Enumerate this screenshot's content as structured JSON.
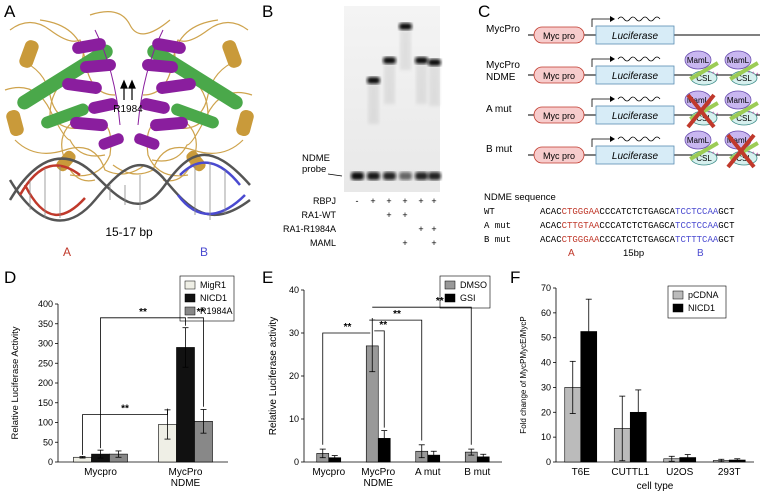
{
  "panels": {
    "A": {
      "letter": "A",
      "residue_label": "R1984",
      "spacing_label": "15-17 bp",
      "site_a_label": "A",
      "site_b_label": "B",
      "colors": {
        "helix_green": "#4aa84a",
        "purple": "#8a1e9e",
        "gold": "#c99a3a",
        "dna_red": "#c0392b",
        "dna_blue": "#4a4ad0",
        "dna_grey": "#555555"
      }
    },
    "B": {
      "letter": "B",
      "probe_label": "NDME\nprobe",
      "row_labels": [
        "RBPJ",
        "RA1-WT",
        "RA1-R1984A",
        "MAML"
      ],
      "lanes": [
        {
          "RBPJ": "-",
          "RA1-WT": "",
          "RA1-R1984A": "",
          "MAML": ""
        },
        {
          "RBPJ": "+",
          "RA1-WT": "",
          "RA1-R1984A": "",
          "MAML": ""
        },
        {
          "RBPJ": "+",
          "RA1-WT": "+",
          "RA1-R1984A": "",
          "MAML": ""
        },
        {
          "RBPJ": "+",
          "RA1-WT": "+",
          "RA1-R1984A": "",
          "MAML": "+"
        },
        {
          "RBPJ": "+",
          "RA1-WT": "",
          "RA1-R1984A": "+",
          "MAML": ""
        },
        {
          "RBPJ": "+",
          "RA1-WT": "",
          "RA1-R1984A": "+",
          "MAML": "+"
        }
      ]
    },
    "C": {
      "letter": "C",
      "constructs": [
        {
          "name": "MycPro",
          "has_sites": false,
          "mut_a": false,
          "mut_b": false
        },
        {
          "name": "MycPro\nNDME",
          "has_sites": true,
          "mut_a": false,
          "mut_b": false
        },
        {
          "name": "A mut",
          "has_sites": true,
          "mut_a": true,
          "mut_b": false
        },
        {
          "name": "B mut",
          "has_sites": true,
          "mut_a": false,
          "mut_b": true
        }
      ],
      "promoter_label": "Myc pro",
      "reporter_label": "Luciferase",
      "maml_label": "MamL",
      "csl_label": "CSL",
      "sequence_title": "NDME sequence",
      "sequences": [
        {
          "name": "WT",
          "segments": [
            [
              "ACAC",
              "k"
            ],
            [
              "CTGGGAA",
              "r"
            ],
            [
              "CCCATCTCTGAGCA",
              "k"
            ],
            [
              "TCCTCCAA",
              "b"
            ],
            [
              "GCT",
              "k"
            ]
          ]
        },
        {
          "name": "A mut",
          "segments": [
            [
              "ACAC",
              "k"
            ],
            [
              "CTTGTAA",
              "r"
            ],
            [
              "CCCATCTCTGAGCA",
              "k"
            ],
            [
              "TCCTCCAA",
              "b"
            ],
            [
              "GCT",
              "k"
            ]
          ]
        },
        {
          "name": "B mut",
          "segments": [
            [
              "ACAC",
              "k"
            ],
            [
              "CTGGGAA",
              "r"
            ],
            [
              "CCCATCTCTGAGCA",
              "k"
            ],
            [
              "TCTTTCAA",
              "b"
            ],
            [
              "GCT",
              "k"
            ]
          ]
        }
      ],
      "seq_a_label": "A",
      "seq_spacing_label": "15bp",
      "seq_b_label": "B"
    },
    "D": {
      "letter": "D"
    },
    "E": {
      "letter": "E"
    },
    "F": {
      "letter": "F"
    }
  },
  "chart_data": [
    {
      "panel": "D",
      "type": "bar",
      "categories": [
        "Mycpro",
        "MycPro\nNDME"
      ],
      "series": [
        {
          "name": "MigR1",
          "values": [
            12,
            95
          ],
          "errors": [
            2,
            37
          ],
          "color": "#efefe6"
        },
        {
          "name": "NICD1",
          "values": [
            20,
            290
          ],
          "errors": [
            10,
            50
          ],
          "color": "#111111"
        },
        {
          "name": "R1984A",
          "values": [
            20,
            103
          ],
          "errors": [
            8,
            30
          ],
          "color": "#888888"
        }
      ],
      "ylabel": "Relative Luciferase Activity",
      "ylim": [
        0,
        400
      ],
      "yticks": [
        0,
        50,
        100,
        150,
        200,
        250,
        300,
        350,
        400
      ],
      "significance": [
        "**",
        "**",
        "**"
      ]
    },
    {
      "panel": "E",
      "type": "bar",
      "categories": [
        "Mycpro",
        "MycPro\nNDME",
        "A mut",
        "B mut"
      ],
      "series": [
        {
          "name": "DMSO",
          "values": [
            2,
            27,
            2.5,
            2.3
          ],
          "errors": [
            1,
            6,
            1.5,
            0.7
          ],
          "color": "#999999"
        },
        {
          "name": "GSI",
          "values": [
            1,
            5.5,
            1.6,
            1.2
          ],
          "errors": [
            0.5,
            1.8,
            0.9,
            0.6
          ],
          "color": "#000000"
        }
      ],
      "ylabel": "Relative Luciferase activity",
      "ylim": [
        0,
        40
      ],
      "yticks": [
        0,
        10,
        20,
        30,
        40
      ],
      "significance": [
        "**",
        "**",
        "**",
        "**"
      ]
    },
    {
      "panel": "F",
      "type": "bar",
      "categories": [
        "T6E",
        "CUTTL1",
        "U2OS",
        "293T"
      ],
      "series": [
        {
          "name": "pCDNA",
          "values": [
            30,
            13.5,
            1.3,
            0.6
          ],
          "errors": [
            10.5,
            13,
            1,
            0.5
          ],
          "color": "#bbbbbb"
        },
        {
          "name": "NICD1",
          "values": [
            52.5,
            20,
            1.8,
            0.8
          ],
          "errors": [
            13,
            9,
            1.2,
            0.5
          ],
          "color": "#000000"
        }
      ],
      "ylabel": "Fold change of MycPMycE/MycP",
      "xlabel": "cell type",
      "ylim": [
        0,
        70
      ],
      "yticks": [
        0,
        10,
        20,
        30,
        40,
        50,
        60,
        70
      ]
    }
  ]
}
